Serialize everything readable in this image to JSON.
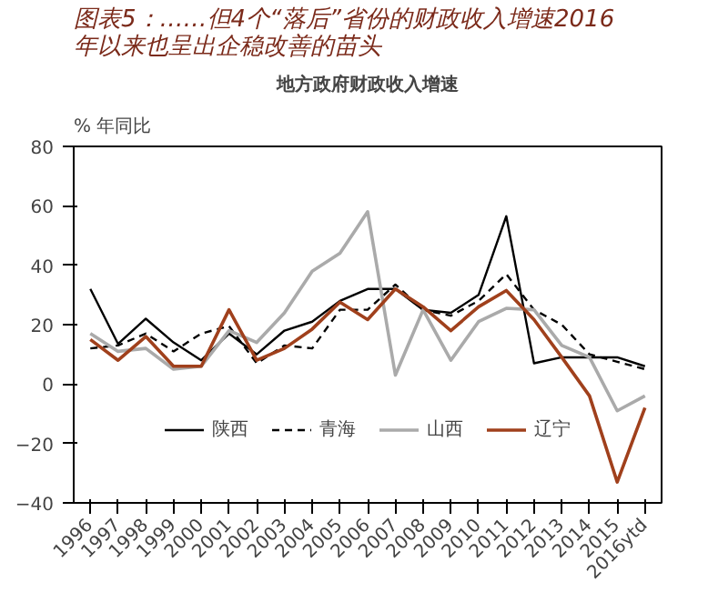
{
  "chart_data": {
    "type": "line",
    "title": "图表5：……但4个“落后”省份的财政收入增速2016年以来也呈出企稳改善的苗头",
    "subtitle": "地方政府财政收入增速",
    "ylabel": "% 年同比",
    "categories": [
      "1996",
      "1997",
      "1998",
      "1999",
      "2000",
      "2001",
      "2002",
      "2003",
      "2004",
      "2005",
      "2006",
      "2007",
      "2008",
      "2009",
      "2010",
      "2011",
      "2012",
      "2013",
      "2014",
      "2015",
      "2016ytd"
    ],
    "ylim": [
      -40,
      80
    ],
    "yticks": [
      -40,
      -20,
      0,
      20,
      40,
      60,
      80
    ],
    "grid": false,
    "legend": "bottom",
    "marker": "none",
    "series": [
      {
        "name": "陕西",
        "color": "#000000",
        "line_style": "solid",
        "values": [
          32,
          13.5,
          22,
          14,
          8,
          17,
          10,
          18,
          21,
          28,
          32,
          32,
          25,
          24,
          30,
          56.5,
          7,
          9,
          9,
          9,
          6
        ]
      },
      {
        "name": "青海",
        "color": "#000000",
        "line_style": "dashed",
        "values": [
          12,
          13,
          17,
          11,
          17,
          19.5,
          7,
          13,
          12,
          25,
          25,
          33.5,
          25,
          23,
          28,
          37,
          25,
          20,
          10,
          7.5,
          5
        ]
      },
      {
        "name": "山西",
        "color": "#aaaaaa",
        "line_style": "solid",
        "values": [
          17,
          11,
          12,
          5,
          6,
          18,
          14,
          24,
          38,
          44,
          58,
          3,
          25,
          8,
          21,
          25.5,
          25,
          13,
          9,
          -9,
          -4
        ]
      },
      {
        "name": "辽宁",
        "color": "#a0401c",
        "line_style": "solid",
        "values": [
          15,
          8,
          16,
          6,
          6,
          25,
          8,
          12,
          18.5,
          27.6,
          21.7,
          32,
          26,
          18,
          26,
          31.5,
          21.7,
          9,
          -4,
          -33,
          -8
        ]
      }
    ]
  }
}
